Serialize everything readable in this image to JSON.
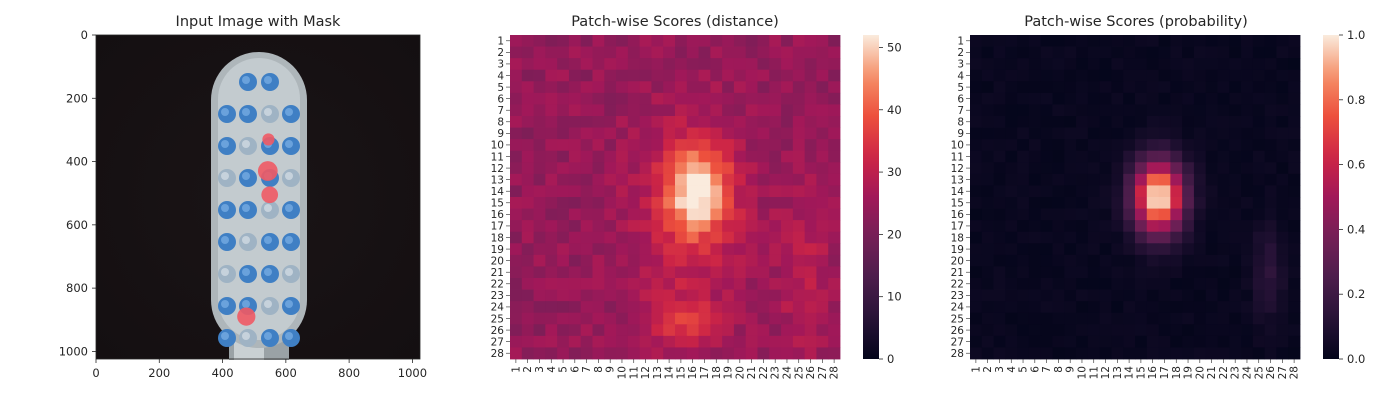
{
  "chart_data": [
    {
      "type": "image",
      "title": "Input Image with Mask",
      "xlim": [
        0,
        1024
      ],
      "ylim": [
        1024,
        0
      ],
      "xticks": [
        0,
        200,
        400,
        600,
        800,
        1000
      ],
      "yticks": [
        0,
        200,
        400,
        600,
        800,
        1000
      ],
      "mask_color": "#f05a64",
      "mask_regions": [
        {
          "x": 545,
          "y": 330,
          "r": 16
        },
        {
          "x": 543,
          "y": 430,
          "r": 26
        },
        {
          "x": 549,
          "y": 505,
          "r": 22
        },
        {
          "x": 475,
          "y": 890,
          "r": 24
        }
      ]
    },
    {
      "type": "heatmap",
      "title": "Patch-wise Scores (distance)",
      "rows": [
        "1",
        "2",
        "3",
        "4",
        "5",
        "6",
        "7",
        "8",
        "9",
        "10",
        "11",
        "12",
        "13",
        "14",
        "15",
        "16",
        "17",
        "18",
        "19",
        "20",
        "21",
        "22",
        "23",
        "24",
        "25",
        "26",
        "27",
        "28"
      ],
      "cols": [
        "1",
        "2",
        "3",
        "4",
        "5",
        "6",
        "7",
        "8",
        "9",
        "10",
        "11",
        "12",
        "13",
        "14",
        "15",
        "16",
        "17",
        "18",
        "19",
        "20",
        "21",
        "22",
        "23",
        "24",
        "25",
        "26",
        "27",
        "28"
      ],
      "colorbar": {
        "min": 0,
        "max": 52,
        "ticks": [
          0,
          10,
          20,
          30,
          40,
          50
        ]
      },
      "colormap": "rocket",
      "base": 24,
      "blobs": [
        {
          "row": 14,
          "col": 16.5,
          "sr": 2.6,
          "sc": 1.9,
          "amp": 24
        },
        {
          "row": 16,
          "col": 15.5,
          "sr": 6.0,
          "sc": 3.2,
          "amp": 8
        },
        {
          "row": 25.5,
          "col": 15,
          "sr": 1.6,
          "sc": 2.2,
          "amp": 10
        },
        {
          "row": 21,
          "col": 25.5,
          "sr": 5.0,
          "sc": 1.6,
          "amp": 6
        }
      ]
    },
    {
      "type": "heatmap",
      "title": "Patch-wise Scores (probability)",
      "rows": [
        "1",
        "2",
        "3",
        "4",
        "5",
        "6",
        "7",
        "8",
        "9",
        "10",
        "11",
        "12",
        "13",
        "14",
        "15",
        "16",
        "17",
        "18",
        "19",
        "20",
        "21",
        "22",
        "23",
        "24",
        "25",
        "26",
        "27",
        "28"
      ],
      "cols": [
        "1",
        "2",
        "3",
        "4",
        "5",
        "6",
        "7",
        "8",
        "9",
        "10",
        "11",
        "12",
        "13",
        "14",
        "15",
        "16",
        "17",
        "18",
        "19",
        "20",
        "21",
        "22",
        "23",
        "24",
        "25",
        "26",
        "27",
        "28"
      ],
      "colorbar": {
        "min": 0.0,
        "max": 1.0,
        "ticks": [
          "0.0",
          "0.2",
          "0.4",
          "0.6",
          "0.8",
          "1.0"
        ]
      },
      "colormap": "rocket",
      "base": 0.02,
      "blobs": [
        {
          "row": 14.5,
          "col": 16.5,
          "sr": 2.2,
          "sc": 1.5,
          "amp": 1.0
        },
        {
          "row": 21,
          "col": 25.8,
          "sr": 2.8,
          "sc": 0.9,
          "amp": 0.12
        }
      ]
    }
  ]
}
